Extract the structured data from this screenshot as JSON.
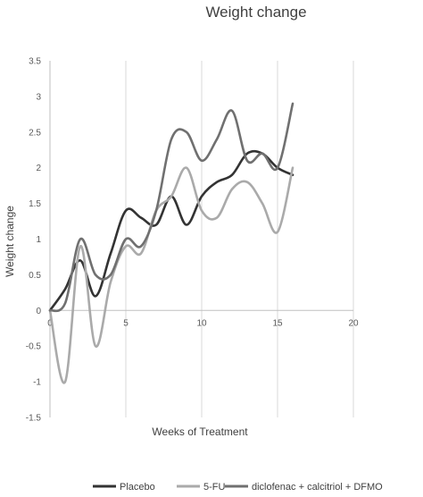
{
  "chart_data": {
    "type": "line",
    "title": "Weight change",
    "xlabel": "Weeks of Treatment",
    "ylabel": "Weight change",
    "xlim": [
      0,
      20
    ],
    "ylim": [
      -1.5,
      3.5
    ],
    "xticks": [
      "0",
      "5",
      "10",
      "15",
      "20"
    ],
    "yticks": [
      "-1.5",
      "-1",
      "-0.5",
      "0",
      "0.5",
      "1",
      "1.5",
      "2",
      "2.5",
      "3",
      "3.5"
    ],
    "grid": "vertical",
    "legend": "bottom",
    "series": [
      {
        "name": "Placebo",
        "color": "#333333",
        "x": [
          0,
          1,
          2,
          3,
          4,
          5,
          6,
          7,
          8,
          9,
          10,
          11,
          12,
          13,
          14,
          15,
          16
        ],
        "y": [
          0,
          0.3,
          0.7,
          0.2,
          0.8,
          1.4,
          1.3,
          1.2,
          1.6,
          1.2,
          1.6,
          1.8,
          1.9,
          2.2,
          2.2,
          2.0,
          1.9
        ]
      },
      {
        "name": "5-FU",
        "color": "#aaaaaa",
        "x": [
          0,
          1,
          2,
          3,
          4,
          5,
          6,
          7,
          8,
          9,
          10,
          11,
          12,
          13,
          14,
          15,
          16
        ],
        "y": [
          0,
          -1.0,
          0.9,
          -0.5,
          0.4,
          0.9,
          0.8,
          1.4,
          1.6,
          2.0,
          1.4,
          1.3,
          1.7,
          1.8,
          1.5,
          1.1,
          2.0
        ]
      },
      {
        "name": "diclofenac + calcitriol + DFMO",
        "color": "#707070",
        "x": [
          0,
          1,
          2,
          3,
          4,
          5,
          6,
          7,
          8,
          9,
          10,
          11,
          12,
          13,
          14,
          15,
          16
        ],
        "y": [
          0,
          0.1,
          1.0,
          0.5,
          0.5,
          1.0,
          0.9,
          1.4,
          2.4,
          2.5,
          2.1,
          2.4,
          2.8,
          2.1,
          2.2,
          2.0,
          2.9
        ]
      }
    ]
  }
}
